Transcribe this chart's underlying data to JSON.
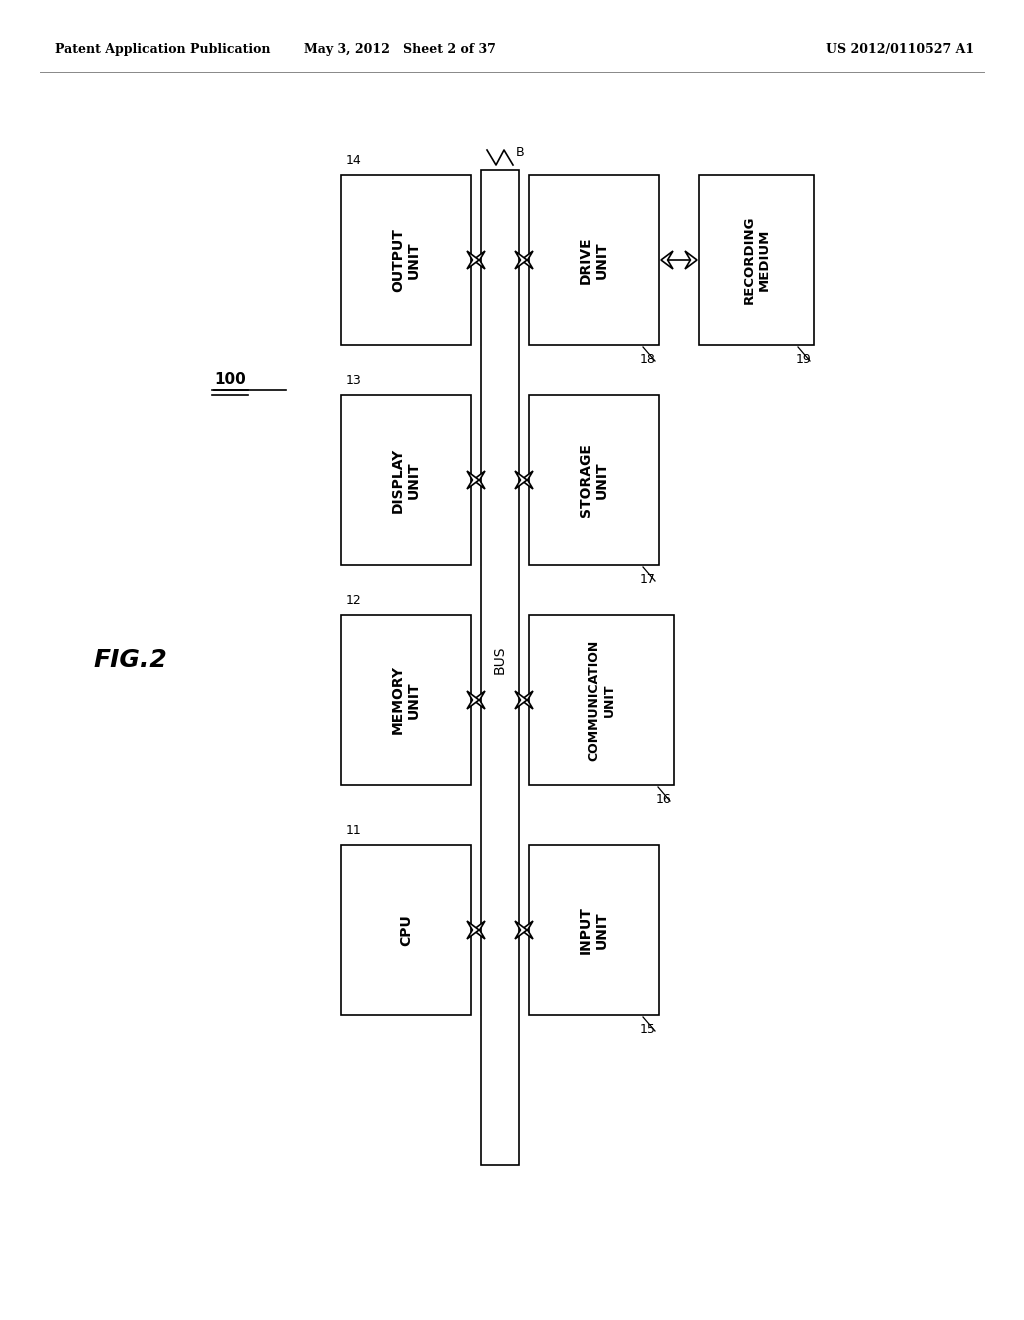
{
  "header_left": "Patent Application Publication",
  "header_mid": "May 3, 2012   Sheet 2 of 37",
  "header_right": "US 2012/0110527 A1",
  "fig_label": "FIG.2",
  "system_label": "100",
  "bus_label": "BUS",
  "bus_break_label": "B",
  "background_color": "#ffffff",
  "left_boxes": [
    {
      "label": "OUTPUT\nUNIT",
      "number": "14"
    },
    {
      "label": "DISPLAY\nUNIT",
      "number": "13"
    },
    {
      "label": "MEMORY\nUNIT",
      "number": "12"
    },
    {
      "label": "CPU",
      "number": "11"
    }
  ],
  "right_boxes": [
    {
      "label": "DRIVE\nUNIT",
      "number": "18"
    },
    {
      "label": "STORAGE\nUNIT",
      "number": "17"
    },
    {
      "label": "COMMUNICATION\nUNIT",
      "number": "16"
    },
    {
      "label": "INPUT\nUNIT",
      "number": "15"
    }
  ],
  "recording_medium": {
    "label": "RECORDING\nMEDIUM",
    "number": "19"
  }
}
